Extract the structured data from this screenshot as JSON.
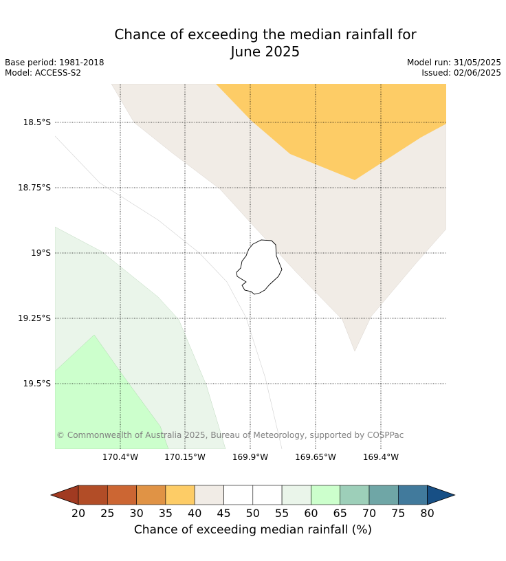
{
  "title_line1": "Chance of exceeding the median rainfall for",
  "title_line2": "June 2025",
  "meta_left": {
    "base_period": "Base period: 1981-2018",
    "model": "Model: ACCESS-S2"
  },
  "meta_right": {
    "model_run": "Model run: 31/05/2025",
    "issued": "Issued: 02/06/2025"
  },
  "map": {
    "lat_labels": [
      "18.5°S",
      "18.75°S",
      "19°S",
      "19.25°S",
      "19.5°S"
    ],
    "lon_labels": [
      "170.4°W",
      "170.15°W",
      "169.9°W",
      "169.65°W",
      "169.4°W"
    ],
    "copyright": "© Commonwealth of Australia 2025, Bureau of Meteorology, supported by COSPPac"
  },
  "colorbar": {
    "label": "Chance of exceeding median rainfall (%)",
    "ticks": [
      "20",
      "25",
      "30",
      "35",
      "40",
      "45",
      "50",
      "55",
      "60",
      "65",
      "70",
      "75",
      "80"
    ],
    "colors": [
      "#a13a21",
      "#b24d27",
      "#cc6633",
      "#e09345",
      "#fdcc66",
      "#f1ece6",
      "#ffffff",
      "#ffffff",
      "#eaf5ea",
      "#ccffcc",
      "#9dcfb9",
      "#6fa6a6",
      "#417a9c",
      "#174f85"
    ],
    "colors_note_text": ""
  },
  "legend_colors": {
    "orange_35_40": "#fdcc66",
    "beige_40_45": "#f1ece6",
    "lightgreen_55_60": "#eaf5ea",
    "green_60_65": "#ccffcc"
  }
}
